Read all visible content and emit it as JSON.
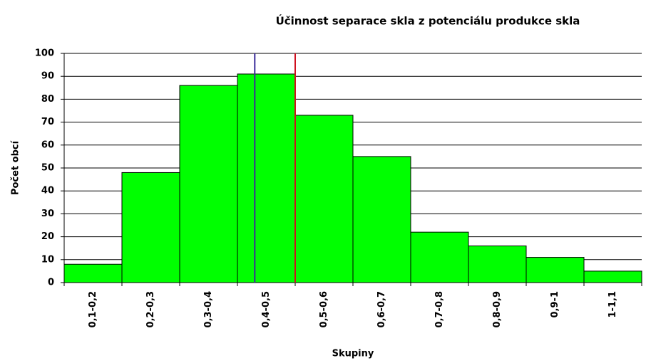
{
  "chart_data": {
    "type": "bar",
    "title": "Účinnost separace skla z potenciálu produkce skla",
    "x_label": "Skupiny",
    "y_label": "Počet obcí",
    "categories": [
      "0,1-0,2",
      "0,2-0,3",
      "0,3-0,4",
      "0,4-0,5",
      "0,5-0,6",
      "0,6-0,7",
      "0,7-0,8",
      "0,8-0,9",
      "0,9-1",
      "1-1,1"
    ],
    "values": [
      8,
      48,
      86,
      91,
      73,
      55,
      22,
      16,
      11,
      5
    ],
    "color": "#00ff00",
    "ylim": [
      0,
      100
    ],
    "yticks": [
      0,
      10,
      20,
      30,
      40,
      50,
      60,
      70,
      80,
      90,
      100
    ],
    "grid": true,
    "vertical_lines": [
      {
        "x": 3.3,
        "color": "#3a2a9a"
      },
      {
        "x": 4.0,
        "color": "#d01020"
      }
    ]
  }
}
